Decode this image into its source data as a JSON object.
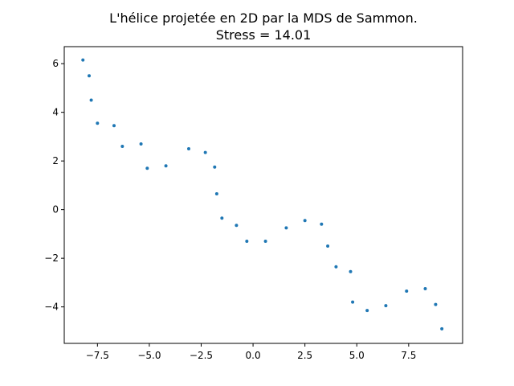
{
  "chart_data": {
    "type": "scatter",
    "title": "L'hélice projetée en 2D par la MDS de Sammon.",
    "subtitle": "Stress = 14.01",
    "xlabel": "",
    "ylabel": "",
    "xlim": [
      -9.1,
      10.1
    ],
    "ylim": [
      -5.5,
      6.7
    ],
    "xticks": [
      -7.5,
      -5.0,
      -2.5,
      0.0,
      2.5,
      5.0,
      7.5
    ],
    "xtick_labels": [
      "−7.5",
      "−5.0",
      "−2.5",
      "0.0",
      "2.5",
      "5.0",
      "7.5"
    ],
    "yticks": [
      -4,
      -2,
      0,
      2,
      4,
      6
    ],
    "ytick_labels": [
      "−4",
      "−2",
      "0",
      "2",
      "4",
      "6"
    ],
    "grid": false,
    "marker_color": "#1f77b4",
    "points": [
      {
        "x": -8.2,
        "y": 6.15
      },
      {
        "x": -7.9,
        "y": 5.5
      },
      {
        "x": -7.8,
        "y": 4.5
      },
      {
        "x": -7.5,
        "y": 3.55
      },
      {
        "x": -6.7,
        "y": 3.45
      },
      {
        "x": -6.3,
        "y": 2.6
      },
      {
        "x": -5.4,
        "y": 2.7
      },
      {
        "x": -5.1,
        "y": 1.7
      },
      {
        "x": -4.2,
        "y": 1.8
      },
      {
        "x": -3.1,
        "y": 2.5
      },
      {
        "x": -2.3,
        "y": 2.35
      },
      {
        "x": -1.85,
        "y": 1.75
      },
      {
        "x": -1.75,
        "y": 0.65
      },
      {
        "x": -1.5,
        "y": -0.35
      },
      {
        "x": -0.8,
        "y": -0.65
      },
      {
        "x": -0.3,
        "y": -1.3
      },
      {
        "x": 0.6,
        "y": -1.3
      },
      {
        "x": 1.6,
        "y": -0.75
      },
      {
        "x": 2.5,
        "y": -0.45
      },
      {
        "x": 3.3,
        "y": -0.6
      },
      {
        "x": 3.6,
        "y": -1.5
      },
      {
        "x": 4.0,
        "y": -2.35
      },
      {
        "x": 4.7,
        "y": -2.55
      },
      {
        "x": 4.8,
        "y": -3.8
      },
      {
        "x": 5.5,
        "y": -4.15
      },
      {
        "x": 6.4,
        "y": -3.95
      },
      {
        "x": 7.4,
        "y": -3.35
      },
      {
        "x": 8.3,
        "y": -3.25
      },
      {
        "x": 8.8,
        "y": -3.9
      },
      {
        "x": 9.1,
        "y": -4.9
      }
    ]
  }
}
